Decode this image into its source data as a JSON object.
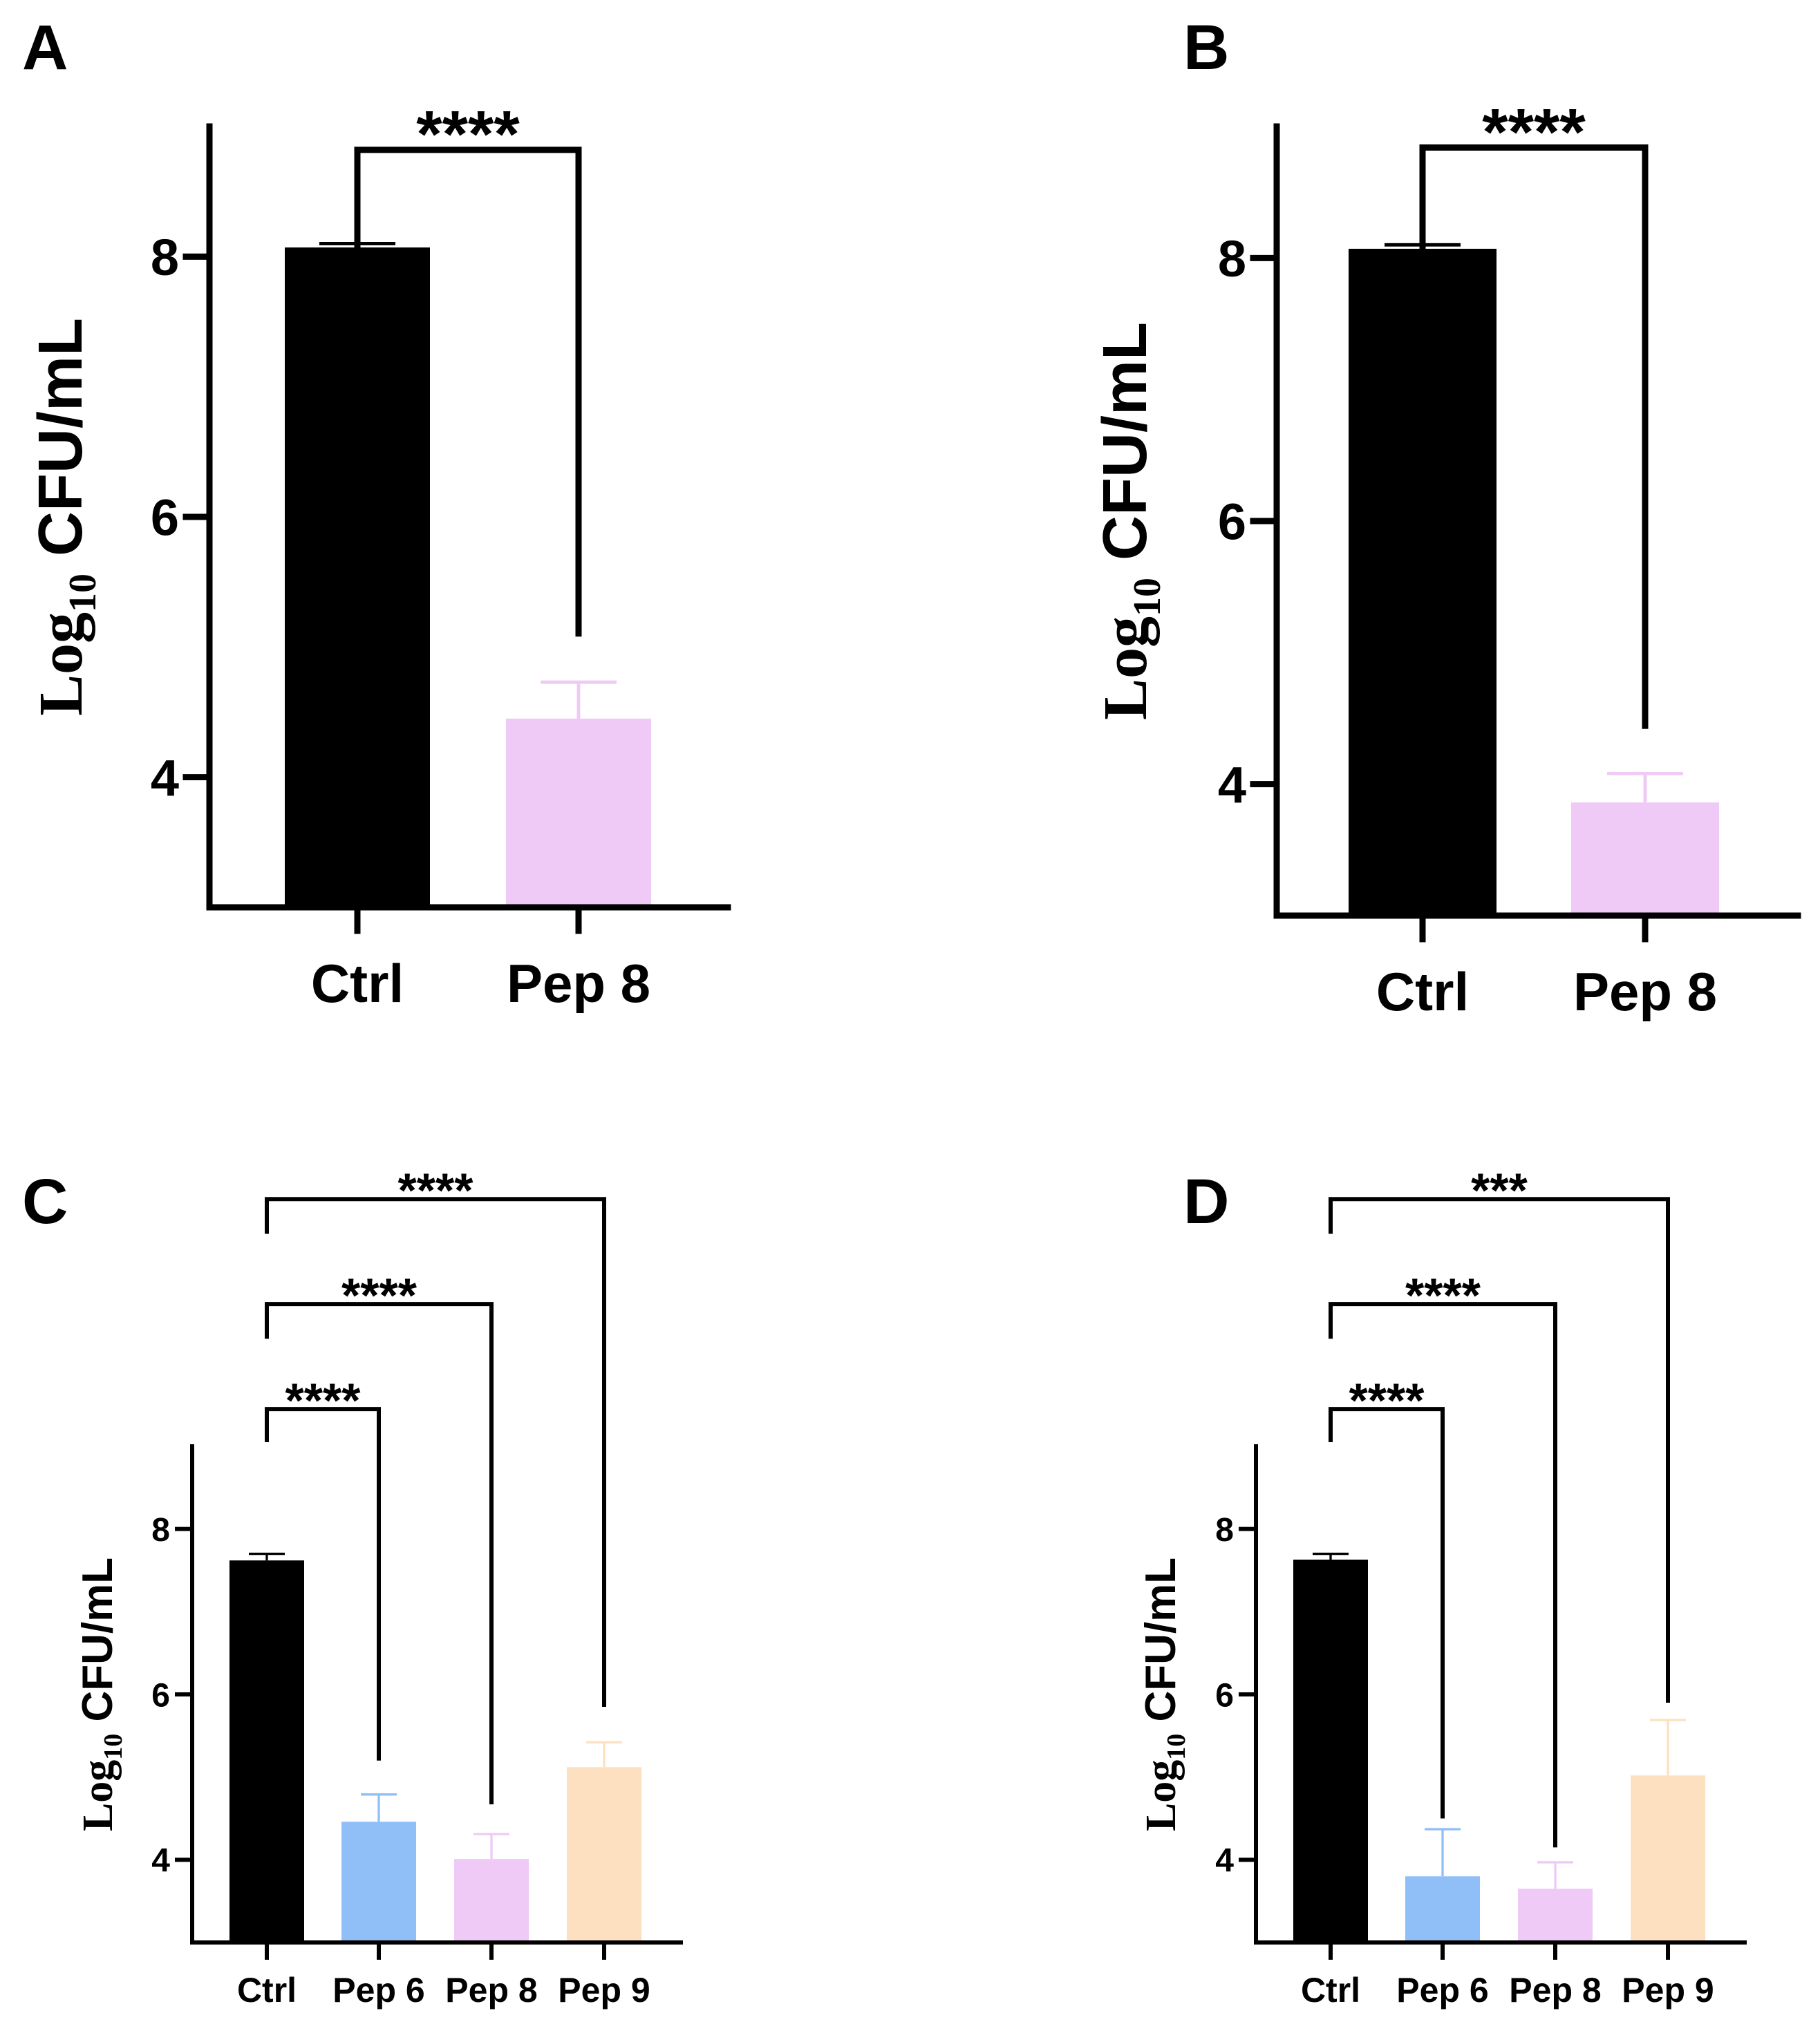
{
  "chart_data": [
    {
      "panel": "A",
      "type": "bar",
      "ylabel": {
        "log": "Log",
        "sub": "10",
        "rest": " CFU/mL"
      },
      "ylim": [
        3,
        9
      ],
      "yticks": [
        4,
        6,
        8
      ],
      "categories": [
        "Ctrl",
        "Pep 8"
      ],
      "values": [
        8.07,
        4.45
      ],
      "errors": [
        0.03,
        0.28
      ],
      "colors": [
        "#000000",
        "#efcaf6"
      ],
      "significance": [
        {
          "from": 0,
          "to": 1,
          "label": "****",
          "top": 8.82,
          "left_end": 7.5,
          "right_end": 5.08
        }
      ]
    },
    {
      "panel": "B",
      "type": "bar",
      "ylabel": {
        "log": "Log",
        "sub": "10",
        "rest": " CFU/mL"
      },
      "ylim": [
        3,
        9
      ],
      "yticks": [
        4,
        6,
        8
      ],
      "categories": [
        "Ctrl",
        "Pep 8"
      ],
      "values": [
        8.07,
        3.86
      ],
      "errors": [
        0.03,
        0.22
      ],
      "colors": [
        "#000000",
        "#efcaf6"
      ],
      "significance": [
        {
          "from": 0,
          "to": 1,
          "label": "****",
          "top": 8.84,
          "left_end": 7.45,
          "right_end": 4.42
        }
      ]
    },
    {
      "panel": "C",
      "type": "bar",
      "ylabel": {
        "log": "Log",
        "sub": "10",
        "rest": " CFU/mL"
      },
      "ylim": [
        3,
        9
      ],
      "yticks": [
        4,
        6,
        8
      ],
      "categories": [
        "Ctrl",
        "Pep 6",
        "Pep 8",
        "Pep 9"
      ],
      "values": [
        7.62,
        4.46,
        4.01,
        5.12
      ],
      "errors": [
        0.08,
        0.33,
        0.3,
        0.3
      ],
      "colors": [
        "#000000",
        "#90bff8",
        "#efcaf6",
        "#fde0c0"
      ],
      "significance": [
        {
          "from": 0,
          "to": 1,
          "label": "****",
          "top": 9.45,
          "left_end": 9.05,
          "right_end": 5.2
        },
        {
          "from": 0,
          "to": 2,
          "label": "****",
          "top": 10.72,
          "left_end": 10.3,
          "right_end": 4.67
        },
        {
          "from": 0,
          "to": 3,
          "label": "****",
          "top": 11.99,
          "left_end": 11.57,
          "right_end": 5.85
        }
      ]
    },
    {
      "panel": "D",
      "type": "bar",
      "ylabel": {
        "log": "Log",
        "sub": "10",
        "rest": " CFU/mL"
      },
      "ylim": [
        3,
        9
      ],
      "yticks": [
        4,
        6,
        8
      ],
      "categories": [
        "Ctrl",
        "Pep 6",
        "Pep 8",
        "Pep 9"
      ],
      "values": [
        7.63,
        3.8,
        3.65,
        5.02
      ],
      "errors": [
        0.07,
        0.57,
        0.32,
        0.67
      ],
      "colors": [
        "#000000",
        "#90bff8",
        "#efcaf6",
        "#fde0c0"
      ],
      "significance": [
        {
          "from": 0,
          "to": 1,
          "label": "****",
          "top": 9.45,
          "left_end": 9.05,
          "right_end": 4.5
        },
        {
          "from": 0,
          "to": 2,
          "label": "****",
          "top": 10.72,
          "left_end": 10.3,
          "right_end": 4.15
        },
        {
          "from": 0,
          "to": 3,
          "label": "***",
          "top": 11.99,
          "left_end": 11.57,
          "right_end": 5.9
        }
      ]
    }
  ]
}
